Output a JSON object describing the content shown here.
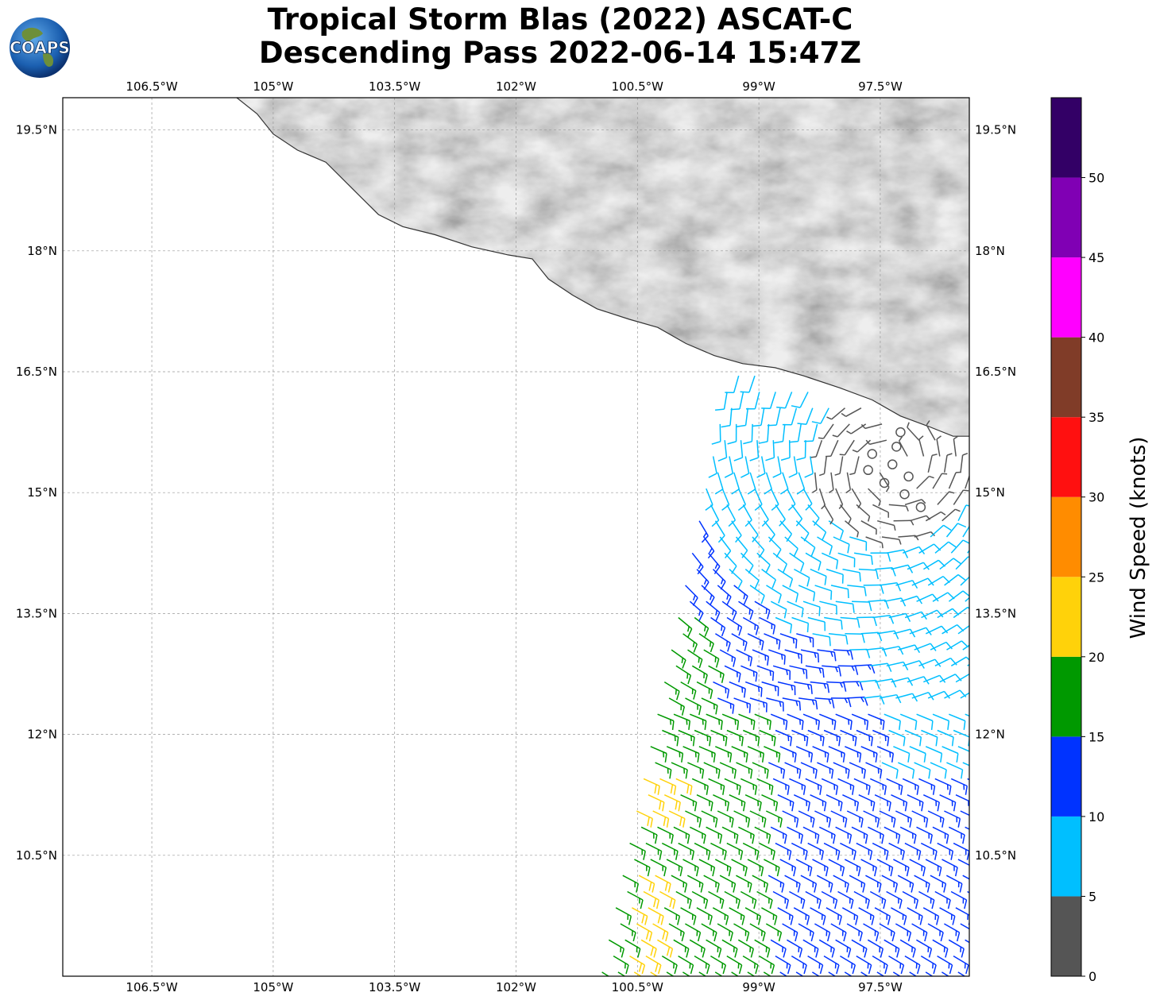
{
  "title": {
    "line1": "Tropical Storm Blas (2022) ASCAT-C",
    "line2": "Descending Pass 2022-06-14 15:47Z"
  },
  "logo": {
    "text": "COAPS"
  },
  "map": {
    "lon_range": [
      -107.6,
      -96.4
    ],
    "lat_range": [
      9.0,
      19.9
    ],
    "lon_ticks": [
      {
        "value": -106.5,
        "label": "106.5°W"
      },
      {
        "value": -105.0,
        "label": "105°W"
      },
      {
        "value": -103.5,
        "label": "103.5°W"
      },
      {
        "value": -102.0,
        "label": "102°W"
      },
      {
        "value": -100.5,
        "label": "100.5°W"
      },
      {
        "value": -99.0,
        "label": "99°W"
      },
      {
        "value": -97.5,
        "label": "97.5°W"
      }
    ],
    "lat_ticks": [
      {
        "value": 19.5,
        "label": "19.5°N"
      },
      {
        "value": 18.0,
        "label": "18°N"
      },
      {
        "value": 16.5,
        "label": "16.5°N"
      },
      {
        "value": 15.0,
        "label": "15°N"
      },
      {
        "value": 13.5,
        "label": "13.5°N"
      },
      {
        "value": 12.0,
        "label": "12°N"
      },
      {
        "value": 10.5,
        "label": "10.5°N"
      }
    ],
    "gridlines": true,
    "land_shading": "grayscale terrain",
    "coastline": [
      [
        -105.45,
        19.9
      ],
      [
        -105.2,
        19.7
      ],
      [
        -105.0,
        19.45
      ],
      [
        -104.7,
        19.25
      ],
      [
        -104.35,
        19.1
      ],
      [
        -104.0,
        18.75
      ],
      [
        -103.7,
        18.45
      ],
      [
        -103.4,
        18.3
      ],
      [
        -103.0,
        18.2
      ],
      [
        -102.55,
        18.05
      ],
      [
        -102.1,
        17.95
      ],
      [
        -101.8,
        17.9
      ],
      [
        -101.6,
        17.65
      ],
      [
        -101.3,
        17.45
      ],
      [
        -101.0,
        17.28
      ],
      [
        -100.6,
        17.15
      ],
      [
        -100.25,
        17.05
      ],
      [
        -99.9,
        16.85
      ],
      [
        -99.55,
        16.7
      ],
      [
        -99.2,
        16.6
      ],
      [
        -98.8,
        16.55
      ],
      [
        -98.45,
        16.45
      ],
      [
        -98.0,
        16.3
      ],
      [
        -97.6,
        16.15
      ],
      [
        -97.25,
        15.95
      ],
      [
        -96.9,
        15.82
      ],
      [
        -96.6,
        15.7
      ],
      [
        -96.4,
        15.7
      ]
    ]
  },
  "colorbar": {
    "label": "Wind Speed (knots)",
    "bins": [
      {
        "from": 0,
        "to": 5,
        "color": "#555555"
      },
      {
        "from": 5,
        "to": 10,
        "color": "#00bfff"
      },
      {
        "from": 10,
        "to": 15,
        "color": "#0033ff"
      },
      {
        "from": 15,
        "to": 20,
        "color": "#009900"
      },
      {
        "from": 20,
        "to": 25,
        "color": "#ffd20a"
      },
      {
        "from": 25,
        "to": 30,
        "color": "#ff8c00"
      },
      {
        "from": 30,
        "to": 35,
        "color": "#ff1010"
      },
      {
        "from": 35,
        "to": 40,
        "color": "#803c28"
      },
      {
        "from": 40,
        "to": 45,
        "color": "#ff00ff"
      },
      {
        "from": 45,
        "to": 50,
        "color": "#8000b4"
      },
      {
        "from": 50,
        "to": 55,
        "color": "#330066"
      }
    ],
    "tick_labels": [
      "0",
      "5",
      "10",
      "15",
      "20",
      "25",
      "30",
      "35",
      "40",
      "45",
      "50"
    ]
  },
  "chart_data": {
    "type": "wind_barbs",
    "units": "knots",
    "swath": {
      "west_edge_lon": [
        [
          9.0,
          -100.95
        ],
        [
          16.45,
          -99.35
        ]
      ],
      "east_edge_lon": [
        [
          9.0,
          -96.4
        ],
        [
          15.1,
          -96.7
        ]
      ]
    },
    "calm_points": [
      [
        -97.6,
        15.48
      ],
      [
        -97.3,
        15.57
      ],
      [
        -97.25,
        15.75
      ],
      [
        -97.65,
        15.28
      ],
      [
        -97.35,
        15.35
      ],
      [
        -97.15,
        15.2
      ],
      [
        -97.45,
        15.12
      ],
      [
        -97.2,
        14.98
      ],
      [
        -97.0,
        14.82
      ]
    ],
    "wind_field_note": "speed/direction per region estimated from barb colours"
  }
}
